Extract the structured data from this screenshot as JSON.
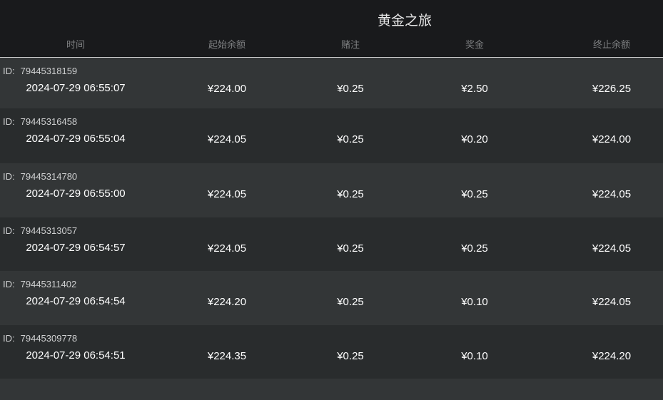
{
  "header": {
    "title": "黄金之旅",
    "columns": [
      "时间",
      "起始余额",
      "赌注",
      "奖金",
      "终止余额"
    ]
  },
  "id_label": "ID:",
  "rows": [
    {
      "id": "79445318159",
      "time": "2024-07-29 06:55:07",
      "start": "¥224.00",
      "bet": "¥0.25",
      "prize": "¥2.50",
      "end": "¥226.25"
    },
    {
      "id": "79445316458",
      "time": "2024-07-29 06:55:04",
      "start": "¥224.05",
      "bet": "¥0.25",
      "prize": "¥0.20",
      "end": "¥224.00"
    },
    {
      "id": "79445314780",
      "time": "2024-07-29 06:55:00",
      "start": "¥224.05",
      "bet": "¥0.25",
      "prize": "¥0.25",
      "end": "¥224.05"
    },
    {
      "id": "79445313057",
      "time": "2024-07-29 06:54:57",
      "start": "¥224.05",
      "bet": "¥0.25",
      "prize": "¥0.25",
      "end": "¥224.05"
    },
    {
      "id": "79445311402",
      "time": "2024-07-29 06:54:54",
      "start": "¥224.20",
      "bet": "¥0.25",
      "prize": "¥0.10",
      "end": "¥224.05"
    },
    {
      "id": "79445309778",
      "time": "2024-07-29 06:54:51",
      "start": "¥224.35",
      "bet": "¥0.25",
      "prize": "¥0.10",
      "end": "¥224.20"
    }
  ]
}
